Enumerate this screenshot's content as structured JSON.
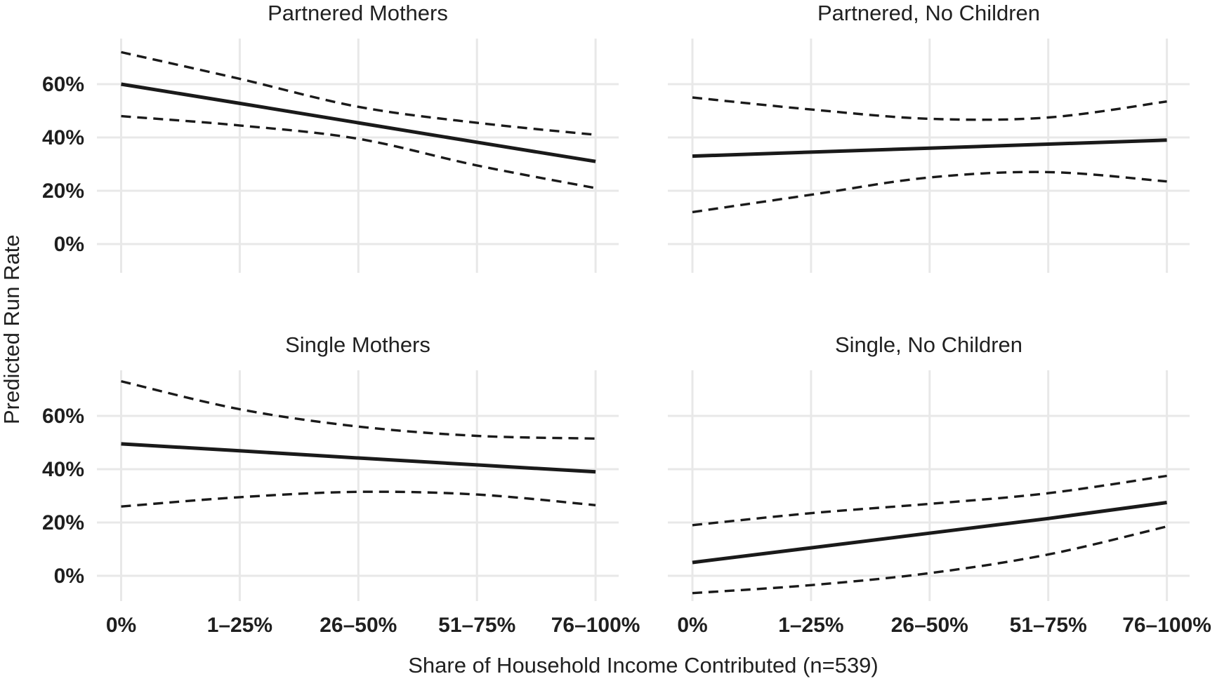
{
  "chart_data": {
    "type": "line",
    "layout": "2x2-facets",
    "title": "",
    "xlabel": "Share of Household Income Contributed (n=539)",
    "ylabel": "Predicted Run Rate",
    "categories": [
      "0%",
      "1–25%",
      "26–50%",
      "51–75%",
      "76–100%"
    ],
    "y_tick_values": [
      0,
      20,
      40,
      60
    ],
    "y_tick_labels": [
      "0%",
      "20%",
      "40%",
      "60%"
    ],
    "ylim": [
      -11,
      77
    ],
    "grid": true,
    "legend": "none",
    "line_color": "#1a1a1a",
    "grid_color": "#e8e8e8",
    "panels": [
      {
        "title": "Partnered Mothers",
        "row": 0,
        "col": 0,
        "series": [
          {
            "name": "predicted",
            "style": "solid",
            "values": [
              60,
              52.8,
              45.5,
              38.2,
              31
            ]
          },
          {
            "name": "upper_ci",
            "style": "dashed",
            "values": [
              72,
              62,
              51.5,
              45.5,
              41
            ]
          },
          {
            "name": "lower_ci",
            "style": "dashed",
            "values": [
              48,
              44.5,
              39.5,
              29.5,
              21
            ]
          }
        ]
      },
      {
        "title": "Partnered, No Children",
        "row": 0,
        "col": 1,
        "series": [
          {
            "name": "predicted",
            "style": "solid",
            "values": [
              33,
              34.5,
              36,
              37.5,
              39
            ]
          },
          {
            "name": "upper_ci",
            "style": "dashed",
            "values": [
              55,
              50.5,
              47,
              47.5,
              53.5
            ]
          },
          {
            "name": "lower_ci",
            "style": "dashed",
            "values": [
              12,
              18.5,
              25,
              27,
              23.5
            ]
          }
        ]
      },
      {
        "title": "Single Mothers",
        "row": 1,
        "col": 0,
        "series": [
          {
            "name": "predicted",
            "style": "solid",
            "values": [
              49.5,
              46.9,
              44.2,
              41.6,
              39
            ]
          },
          {
            "name": "upper_ci",
            "style": "dashed",
            "values": [
              73,
              62.5,
              56,
              52.5,
              51.5
            ]
          },
          {
            "name": "lower_ci",
            "style": "dashed",
            "values": [
              26,
              29.5,
              31.5,
              30.5,
              26.5
            ]
          }
        ]
      },
      {
        "title": "Single, No Children",
        "row": 1,
        "col": 1,
        "series": [
          {
            "name": "predicted",
            "style": "solid",
            "values": [
              5,
              10.5,
              16,
              21.5,
              27.5
            ]
          },
          {
            "name": "upper_ci",
            "style": "dashed",
            "values": [
              19,
              23.5,
              27,
              31,
              37.5
            ]
          },
          {
            "name": "lower_ci",
            "style": "dashed",
            "values": [
              -6.5,
              -3.5,
              1,
              8,
              18.5
            ]
          }
        ]
      }
    ]
  }
}
